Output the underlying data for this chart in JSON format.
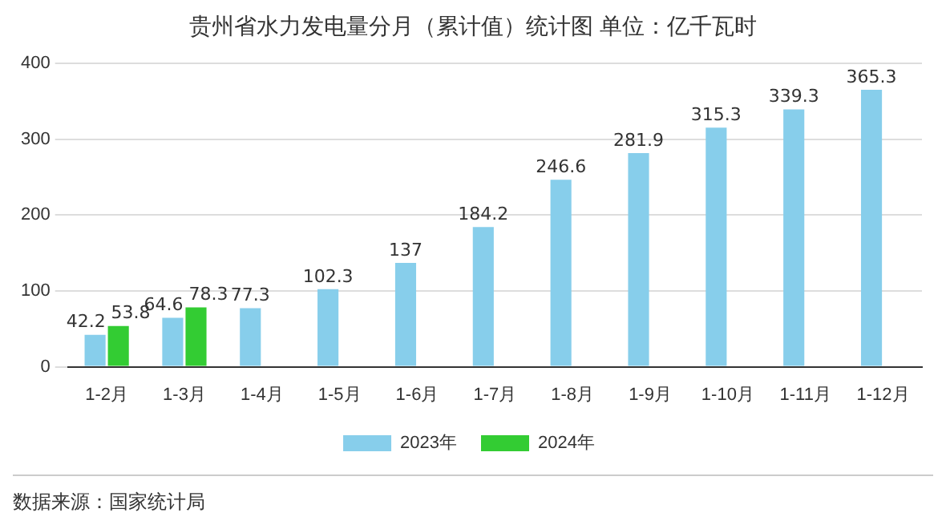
{
  "chart_data": {
    "type": "bar",
    "title": "贵州省水力发电量分月（累计值）统计图 单位：亿千瓦时",
    "categories": [
      "1-2月",
      "1-3月",
      "1-4月",
      "1-5月",
      "1-6月",
      "1-7月",
      "1-8月",
      "1-9月",
      "1-10月",
      "1-11月",
      "1-12月"
    ],
    "series": [
      {
        "name": "2023年",
        "color": "#87ceeb",
        "values": [
          42.2,
          64.6,
          77.3,
          102.3,
          137,
          184.2,
          246.6,
          281.9,
          315.3,
          339.3,
          365.3
        ]
      },
      {
        "name": "2024年",
        "color": "#33cc33",
        "values": [
          53.8,
          78.3,
          null,
          null,
          null,
          null,
          null,
          null,
          null,
          null,
          null
        ]
      }
    ],
    "ylim": [
      0,
      400
    ],
    "yticks": [
      0,
      100,
      200,
      300,
      400
    ],
    "grid": "y",
    "legend": "bottom",
    "data_labels": true,
    "annotations": [
      "数据来源：国家统计局"
    ]
  }
}
